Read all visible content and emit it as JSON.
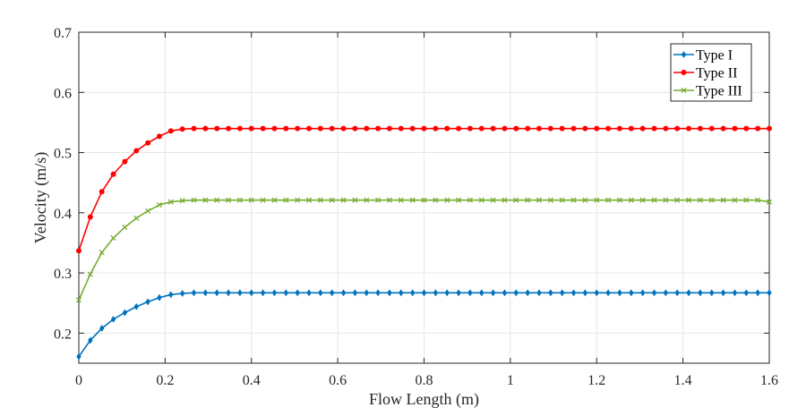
{
  "chart_data": {
    "type": "line",
    "title": "",
    "xlabel": "Flow Length (m)",
    "ylabel": "Velocity (m/s)",
    "xlim": [
      0,
      1.6
    ],
    "ylim": [
      0.15,
      0.7
    ],
    "xticks": [
      0,
      0.2,
      0.4,
      0.6,
      0.8,
      1,
      1.2,
      1.4,
      1.6
    ],
    "xtick_labels": [
      "0",
      "0.2",
      "0.4",
      "0.6",
      "0.8",
      "1",
      "1.2",
      "1.4",
      "1.6"
    ],
    "yticks": [
      0.2,
      0.3,
      0.4,
      0.5,
      0.6,
      0.7
    ],
    "ytick_labels": [
      "0.2",
      "0.3",
      "0.4",
      "0.5",
      "0.6",
      "0.7"
    ],
    "grid": true,
    "legend_position": "upper right",
    "x_spec": {
      "start": 0,
      "end": 1.6,
      "count": 61
    },
    "series": [
      {
        "name": "Type I",
        "color": "#0072BD",
        "marker": "diamond",
        "values": [
          0.161,
          0.188,
          0.208,
          0.223,
          0.234,
          0.244,
          0.252,
          0.259,
          0.264,
          0.266,
          0.267,
          0.267,
          0.267,
          0.267,
          0.267,
          0.267,
          0.267,
          0.267,
          0.267,
          0.267,
          0.267,
          0.267,
          0.267,
          0.267,
          0.267,
          0.267,
          0.267,
          0.267,
          0.267,
          0.267,
          0.267,
          0.267,
          0.267,
          0.267,
          0.267,
          0.267,
          0.267,
          0.267,
          0.267,
          0.267,
          0.267,
          0.267,
          0.267,
          0.267,
          0.267,
          0.267,
          0.267,
          0.267,
          0.267,
          0.267,
          0.267,
          0.267,
          0.267,
          0.267,
          0.267,
          0.267,
          0.267,
          0.267,
          0.267,
          0.267,
          0.267
        ]
      },
      {
        "name": "Type II",
        "color": "#FF0000",
        "marker": "circle",
        "values": [
          0.337,
          0.393,
          0.435,
          0.464,
          0.485,
          0.503,
          0.516,
          0.527,
          0.536,
          0.539,
          0.54,
          0.54,
          0.54,
          0.54,
          0.54,
          0.54,
          0.54,
          0.54,
          0.54,
          0.54,
          0.54,
          0.54,
          0.54,
          0.54,
          0.54,
          0.54,
          0.54,
          0.54,
          0.54,
          0.54,
          0.54,
          0.54,
          0.54,
          0.54,
          0.54,
          0.54,
          0.54,
          0.54,
          0.54,
          0.54,
          0.54,
          0.54,
          0.54,
          0.54,
          0.54,
          0.54,
          0.54,
          0.54,
          0.54,
          0.54,
          0.54,
          0.54,
          0.54,
          0.54,
          0.54,
          0.54,
          0.54,
          0.54,
          0.54,
          0.54,
          0.54
        ]
      },
      {
        "name": "Type III",
        "color": "#77AC30",
        "marker": "x",
        "values": [
          0.255,
          0.298,
          0.334,
          0.358,
          0.376,
          0.391,
          0.403,
          0.413,
          0.418,
          0.42,
          0.421,
          0.421,
          0.421,
          0.421,
          0.421,
          0.421,
          0.421,
          0.421,
          0.421,
          0.421,
          0.421,
          0.421,
          0.421,
          0.421,
          0.421,
          0.421,
          0.421,
          0.421,
          0.421,
          0.421,
          0.421,
          0.421,
          0.421,
          0.421,
          0.421,
          0.421,
          0.421,
          0.421,
          0.421,
          0.421,
          0.421,
          0.421,
          0.421,
          0.421,
          0.421,
          0.421,
          0.421,
          0.421,
          0.421,
          0.421,
          0.421,
          0.421,
          0.421,
          0.421,
          0.421,
          0.421,
          0.421,
          0.421,
          0.421,
          0.421,
          0.418
        ]
      }
    ]
  },
  "legend": {
    "items": [
      {
        "label": "Type I"
      },
      {
        "label": "Type II"
      },
      {
        "label": "Type III"
      }
    ]
  },
  "axes": {
    "xlabel": "Flow Length (m)",
    "ylabel": "Velocity (m/s)"
  }
}
